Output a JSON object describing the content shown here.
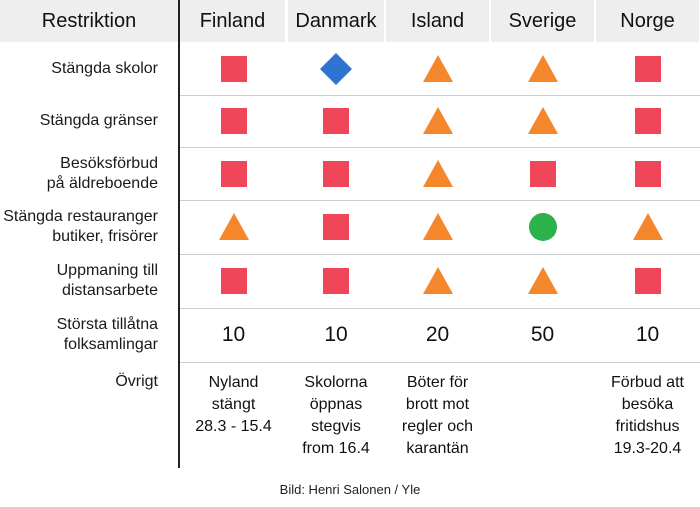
{
  "columns": [
    "Restriktion",
    "Finland",
    "Danmark",
    "Island",
    "Sverige",
    "Norge"
  ],
  "rows": [
    {
      "label": "Stängda skolor",
      "cells": [
        "square",
        "diamond",
        "triangle",
        "triangle",
        "square"
      ]
    },
    {
      "label": "Stängda gränser",
      "cells": [
        "square",
        "square",
        "triangle",
        "triangle",
        "square"
      ]
    },
    {
      "label": "Besöksförbud\npå äldreboende",
      "cells": [
        "square",
        "square",
        "triangle",
        "square",
        "square"
      ]
    },
    {
      "label": "Stängda restauranger\nbutiker, frisörer",
      "cells": [
        "triangle",
        "square",
        "triangle",
        "circle",
        "triangle"
      ]
    },
    {
      "label": "Uppmaning till\ndistansarbete",
      "cells": [
        "square",
        "square",
        "triangle",
        "triangle",
        "square"
      ]
    }
  ],
  "largest_gathering": {
    "label": "Största tillåtna\nfolksamlingar",
    "values": [
      "10",
      "10",
      "20",
      "50",
      "10"
    ]
  },
  "other": {
    "label": "Övrigt",
    "values": [
      "Nyland\nstängt\n28.3 - 15.4",
      "Skolorna\nöppnas\nstegvis\nfrom 16.4",
      "Böter för\nbrott mot\nregler och\nkarantän",
      "",
      "Förbud att\nbesöka\nfritidshus\n19.3-20.4"
    ]
  },
  "caption": "Bild: Henri Salonen / Yle",
  "colors": {
    "square": "#f0465a",
    "triangle": "#f4872b",
    "diamond": "#2f74d0",
    "circle": "#2bb24a"
  }
}
